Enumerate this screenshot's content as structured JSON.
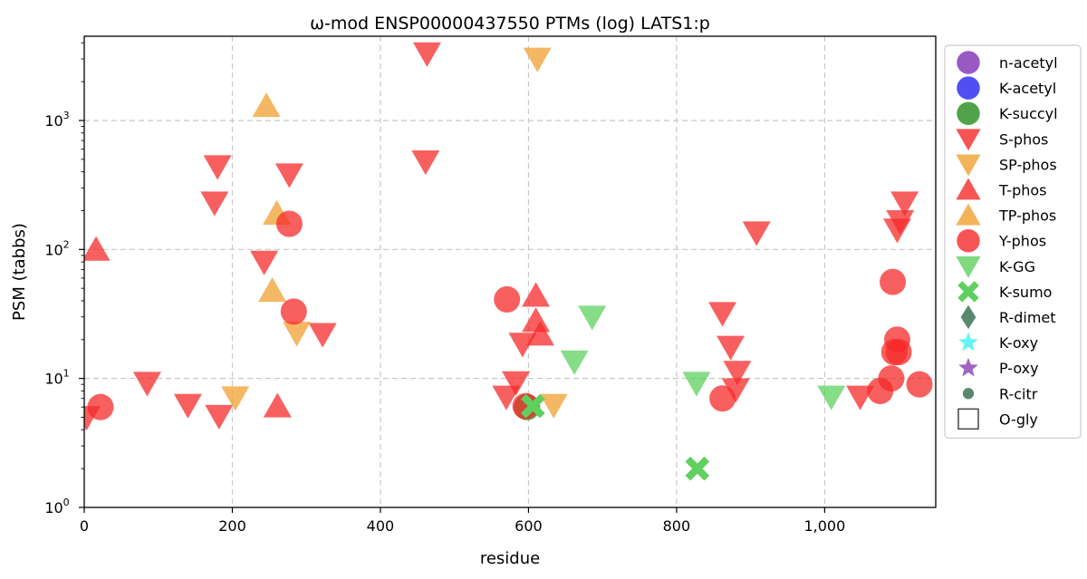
{
  "chart_data": {
    "type": "scatter",
    "title": "ω-mod ENSP00000437550 PTMs (log) LATS1:p",
    "xlabel": "residue",
    "ylabel": "PSM (tabbs)",
    "xlim": [
      0,
      1150
    ],
    "ylim": [
      1,
      4500
    ],
    "yscale": "log",
    "grid": true,
    "legend_position": "outside-right",
    "x_ticks": [
      {
        "value": 0,
        "label": "0"
      },
      {
        "value": 200,
        "label": "200"
      },
      {
        "value": 400,
        "label": "400"
      },
      {
        "value": 600,
        "label": "600"
      },
      {
        "value": 800,
        "label": "800"
      },
      {
        "value": 1000,
        "label": "1,000"
      }
    ],
    "y_ticks": [
      {
        "value": 1,
        "base": "10",
        "exp": "0"
      },
      {
        "value": 10,
        "base": "10",
        "exp": "1"
      },
      {
        "value": 100,
        "base": "10",
        "exp": "2"
      },
      {
        "value": 1000,
        "base": "10",
        "exp": "3"
      }
    ],
    "series": [
      {
        "name": "n-acetyl",
        "marker": "circle",
        "color": "#7e2fb4",
        "points": []
      },
      {
        "name": "K-acetyl",
        "marker": "circle",
        "color": "#2323f0",
        "points": []
      },
      {
        "name": "K-succyl",
        "marker": "circle",
        "color": "#258c1e",
        "points": [
          [
            598,
            6
          ]
        ]
      },
      {
        "name": "S-phos",
        "marker": "triangle-down",
        "color": "#f52a2a",
        "points": [
          [
            3,
            5
          ],
          [
            85,
            9.2
          ],
          [
            140,
            6.2
          ],
          [
            182,
            5.1
          ],
          [
            176,
            230
          ],
          [
            180,
            440
          ],
          [
            243,
            80
          ],
          [
            277,
            380
          ],
          [
            322,
            22
          ],
          [
            463,
            3300
          ],
          [
            461,
            480
          ],
          [
            570,
            7.2
          ],
          [
            583,
            9.3
          ],
          [
            592,
            18.5
          ],
          [
            862,
            32
          ],
          [
            873,
            17.5
          ],
          [
            882,
            11.2
          ],
          [
            880,
            8.2
          ],
          [
            908,
            135
          ],
          [
            1048,
            7.2
          ],
          [
            1098,
            142
          ],
          [
            1102,
            165
          ],
          [
            1108,
            230
          ]
        ]
      },
      {
        "name": "SP-phos",
        "marker": "triangle-down",
        "color": "#f0a030",
        "points": [
          [
            204,
            7.1
          ],
          [
            287,
            22.5
          ],
          [
            612,
            3000
          ],
          [
            634,
            6.2
          ]
        ]
      },
      {
        "name": "T-phos",
        "marker": "triangle-up",
        "color": "#f52a2a",
        "points": [
          [
            16,
            100
          ],
          [
            261,
            6.1
          ],
          [
            610,
            44
          ],
          [
            610,
            28
          ],
          [
            616,
            22
          ]
        ]
      },
      {
        "name": "TP-phos",
        "marker": "triangle-up",
        "color": "#f0a030",
        "points": [
          [
            246,
            1300
          ],
          [
            260,
            190
          ],
          [
            254,
            48
          ]
        ]
      },
      {
        "name": "Y-phos",
        "marker": "circle",
        "color": "#f52a2a",
        "points": [
          [
            22,
            6
          ],
          [
            277,
            158
          ],
          [
            283,
            33
          ],
          [
            571,
            41
          ],
          [
            596,
            6.1
          ],
          [
            862,
            7
          ],
          [
            1075,
            8
          ],
          [
            1090,
            10
          ],
          [
            1092,
            56
          ],
          [
            1094,
            16
          ],
          [
            1098,
            20
          ],
          [
            1100,
            16
          ],
          [
            1128,
            9
          ]
        ]
      },
      {
        "name": "K-GG",
        "marker": "triangle-down",
        "color": "#5fd05f",
        "points": [
          [
            662,
            13.5
          ],
          [
            686,
            30
          ],
          [
            827,
            9.2
          ],
          [
            1009,
            7.2
          ]
        ]
      },
      {
        "name": "K-sumo",
        "marker": "x",
        "color": "#5fd05f",
        "points": [
          [
            606,
            6.1
          ],
          [
            828,
            2
          ]
        ]
      },
      {
        "name": "R-dimet",
        "marker": "diamond",
        "color": "#2e6b4b",
        "points": []
      },
      {
        "name": "K-oxy",
        "marker": "star",
        "color": "#3ff0f0",
        "points": []
      },
      {
        "name": "P-oxy",
        "marker": "star",
        "color": "#8a3fb0",
        "points": []
      },
      {
        "name": "R-citr",
        "marker": "small-circle",
        "color": "#2e6b4b",
        "points": []
      },
      {
        "name": "O-gly",
        "marker": "square-open",
        "color": "#444444",
        "points": []
      }
    ]
  }
}
